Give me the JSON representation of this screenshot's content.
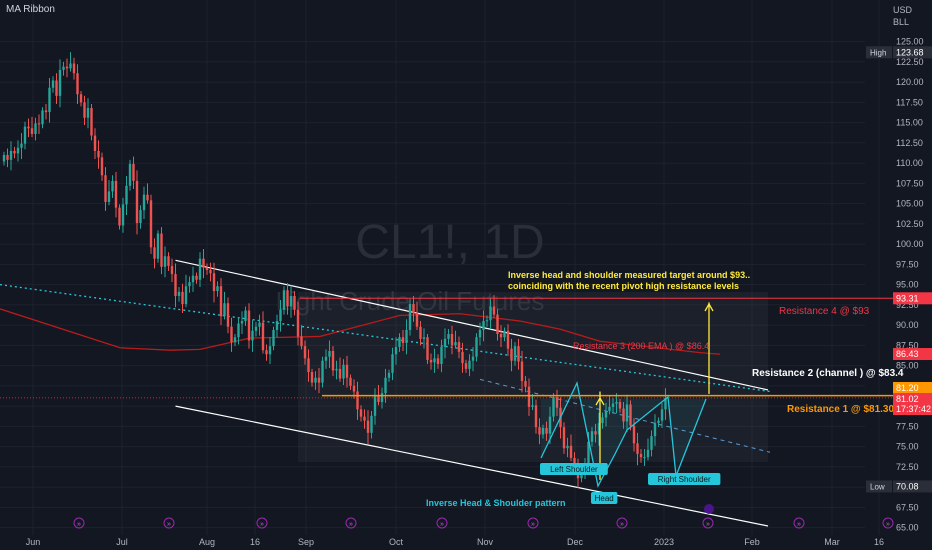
{
  "header": {
    "indicator": "MA Ribbon",
    "currency": "USD",
    "unit": "BLL"
  },
  "watermark": {
    "symbol": "CL1!, 1D",
    "name": "Light Crude Oil Futures"
  },
  "colors": {
    "bg": "#131722",
    "up": "#26a69a",
    "down": "#ef5350",
    "grid": "#1e222d",
    "ema": "#b71c1c",
    "channel": "#ffffff",
    "cyan": "#26c6da",
    "orange": "#ff9800",
    "yellow": "#ffeb3b",
    "pink": "#f23645"
  },
  "price_scale": {
    "ticks": [
      "125.00",
      "122.50",
      "120.00",
      "117.50",
      "115.00",
      "112.50",
      "110.00",
      "107.50",
      "105.00",
      "102.50",
      "100.00",
      "97.50",
      "95.00",
      "92.50",
      "90.00",
      "87.50",
      "85.00",
      "82.50",
      "80.00",
      "77.50",
      "75.00",
      "72.50",
      "70.00",
      "67.50",
      "65.00"
    ],
    "high_label": "High",
    "high_value": "123.68",
    "low_label": "Low",
    "low_value": "70.08",
    "tags": [
      {
        "value": "93.31",
        "color": "#f23645"
      },
      {
        "value": "86.43",
        "color": "#f23645"
      },
      {
        "value": "81.20",
        "color": "#ff9800"
      },
      {
        "value": "81.02",
        "color": "#f23645"
      },
      {
        "value": "17:37:42",
        "color": "#f23645"
      }
    ]
  },
  "time_scale": {
    "ticks": [
      "Jun",
      "Jul",
      "Aug",
      "16",
      "Sep",
      "Oct",
      "Nov",
      "Dec",
      "2023",
      "Feb",
      "Mar",
      "16"
    ]
  },
  "annotations": {
    "target_note": "Inverse head and shoulder measured target around $93..\ncoinciding with the recent pivot high resistance levels",
    "resistance_4": "Resistance 4 @ $93",
    "resistance_3": "Resistance 3 (200 EMA ) @ $86.4",
    "resistance_2": "Resistance 2 (channel ) @ $83.4",
    "resistance_1": "Resistance 1 @ $81.30",
    "left_shoulder": "Left Shoulder",
    "head": "Head",
    "right_shoulder": "Right Shoulder",
    "pattern_name": "Inverse Head & Shoulder pattern"
  },
  "chart_data": {
    "type": "candlestick",
    "y_range": [
      65,
      127
    ],
    "closes": [
      111.0,
      110.4,
      111.5,
      111.2,
      111.9,
      112.4,
      114.5,
      114.3,
      113.6,
      114.9,
      114.8,
      116.5,
      116.3,
      119.3,
      120.2,
      118.3,
      121.5,
      121.9,
      121.7,
      122.3,
      121.1,
      118.5,
      117.5,
      115.6,
      116.8,
      113.4,
      111.5,
      110.7,
      108.5,
      105.2,
      106.5,
      107.8,
      104.5,
      102.3,
      104.9,
      107.2,
      109.9,
      107.8,
      102.6,
      104.2,
      106.1,
      105.4,
      99.6,
      98.2,
      101.3,
      97.2,
      98.5,
      97.3,
      96.3,
      93.6,
      94.1,
      92.6,
      94.8,
      95.3,
      96.1,
      95.6,
      98.2,
      97.1,
      96.8,
      96.4,
      94.2,
      94.8,
      91.1,
      92.7,
      89.8,
      87.9,
      88.5,
      90.2,
      90.5,
      91.8,
      88.1,
      89.3,
      89.8,
      90.3,
      86.9,
      86.4,
      87.4,
      89.4,
      90.5,
      91.9,
      94.3,
      92.3,
      93.6,
      91.9,
      88.6,
      87.4,
      85.9,
      84.2,
      82.9,
      83.5,
      82.9,
      85.6,
      86.1,
      86.8,
      84.4,
      84.6,
      83.4,
      85.1,
      83.5,
      82.5,
      81.8,
      79.6,
      78.7,
      78.2,
      76.7,
      78.8,
      81.2,
      80.5,
      81.6,
      83.5,
      84.1,
      86.4,
      87.3,
      88.5,
      87.8,
      89.4,
      92.6,
      91.5,
      89.8,
      88.3,
      88.5,
      85.7,
      85.4,
      85.9,
      85.2,
      87.3,
      88.3,
      88.9,
      87.5,
      87.9,
      86.7,
      85.3,
      84.6,
      85.6,
      86.1,
      88.5,
      89.4,
      90.5,
      90.6,
      92.3,
      91.3,
      88.9,
      88.5,
      89.3,
      87.1,
      85.6,
      87.4,
      85.5,
      83.1,
      82.4,
      79.9,
      80.1,
      77.4,
      76.5,
      77.3,
      76.6,
      78.7,
      81.1,
      79.8,
      77.4,
      74.8,
      75.1,
      73.6,
      72.4,
      71.1,
      71.9,
      72.8,
      75.6,
      76.9,
      76.5,
      77.9,
      78.6,
      79.4,
      79.9,
      80.3,
      80.5,
      79.7,
      78.1,
      80.2,
      77.6,
      75.4,
      74.1,
      73.7,
      73.7,
      74.6,
      76.3,
      77.9,
      78.2,
      79.6,
      81.0
    ],
    "ema200": {
      "x_end": 189,
      "start": 85.0,
      "end": 86.4
    },
    "channel": {
      "upper": [
        [
          49,
          98.0
        ],
        [
          199,
          82.0
        ]
      ],
      "lower": [
        [
          49,
          80.0
        ],
        [
          199,
          65.0
        ]
      ]
    },
    "levels": {
      "resistance_4": 93.31,
      "ema200": 86.43,
      "resistance_1": 81.3
    },
    "high": 123.68,
    "low": 70.08,
    "last": 81.02
  }
}
